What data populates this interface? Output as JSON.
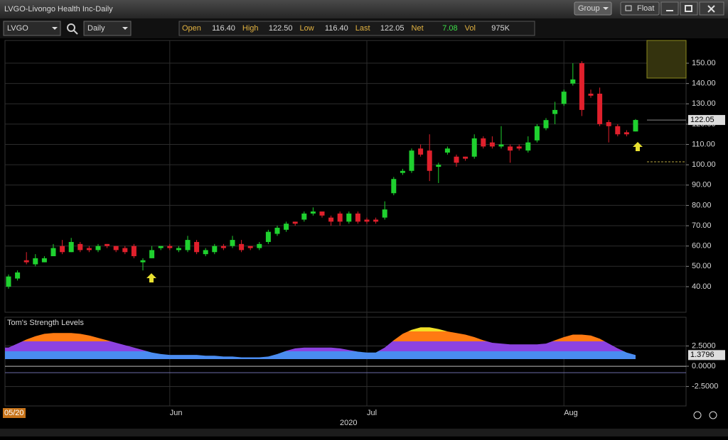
{
  "window": {
    "title": "LVGO-Livongo Health Inc-Daily",
    "buttons": [
      "Group",
      "Float"
    ]
  },
  "toolbar": {
    "symbol": "LVGO",
    "interval": "Daily",
    "quote": [
      {
        "label": "Open",
        "value": "116.40"
      },
      {
        "label": "High",
        "value": "122.50"
      },
      {
        "label": "Low",
        "value": "116.40"
      },
      {
        "label": "Last",
        "value": "122.05"
      },
      {
        "label": "Net",
        "value": "7.08"
      },
      {
        "label": "Vol",
        "value": "975K"
      }
    ]
  },
  "chart_data": [
    {
      "type": "candlestick",
      "categories": [
        null,
        null,
        null,
        null,
        null,
        null,
        null,
        null,
        null,
        null,
        null,
        null,
        null,
        null,
        null,
        null,
        null,
        null,
        null,
        null,
        null,
        null,
        null,
        null,
        null,
        null,
        null,
        null,
        null,
        null,
        null,
        null,
        null,
        null,
        null,
        null,
        null,
        null,
        null,
        null,
        null,
        null,
        null,
        null,
        null,
        null,
        null,
        null,
        null,
        null,
        null,
        null,
        null,
        null,
        null,
        null,
        null,
        null,
        null,
        null,
        null,
        null,
        null,
        null,
        null,
        null,
        null,
        null,
        null,
        null,
        null
      ],
      "open": [
        40,
        44,
        53,
        51,
        52,
        55,
        60,
        57,
        61,
        59,
        58,
        61,
        60,
        59,
        60,
        52,
        54,
        59,
        60,
        58,
        58,
        62,
        56,
        57,
        60,
        60,
        61,
        60,
        59,
        62,
        66,
        68,
        72,
        73,
        76,
        77,
        74,
        76,
        72,
        76,
        73,
        73,
        74,
        86,
        96,
        97,
        108,
        107,
        99,
        106,
        104,
        104,
        104,
        113,
        111,
        109,
        109,
        109,
        107,
        112,
        118,
        125,
        130,
        140,
        150,
        135,
        135,
        121,
        119,
        116,
        116.4
      ],
      "high": [
        46,
        48,
        57,
        56,
        55,
        61,
        63,
        64,
        62,
        60,
        61,
        61,
        60,
        60,
        61,
        54,
        60,
        60,
        61,
        60,
        65,
        63,
        59,
        61,
        61,
        65,
        63,
        60,
        62,
        68,
        70,
        72,
        72,
        77,
        79,
        77,
        75,
        77,
        77,
        77,
        74,
        74,
        82,
        94,
        98,
        108,
        110,
        115,
        101,
        109,
        105,
        104,
        115,
        114,
        114,
        119,
        110,
        110,
        114,
        120,
        123,
        131,
        137,
        150,
        151,
        137,
        138,
        122,
        120,
        117,
        122.5
      ],
      "low": [
        39,
        43,
        51,
        50,
        52,
        55,
        56,
        57,
        57,
        57,
        57,
        59,
        57,
        56,
        54,
        48,
        54,
        58,
        58,
        57,
        57,
        56,
        55,
        56,
        58,
        59,
        57,
        58,
        58,
        61,
        65,
        67,
        70,
        72,
        75,
        74,
        70,
        70,
        71,
        71,
        71,
        71,
        73,
        85,
        95,
        96,
        104,
        92,
        91,
        105,
        99,
        102,
        103,
        108,
        108,
        108,
        101,
        107,
        106,
        111,
        117,
        120,
        129,
        139,
        124,
        133,
        119,
        111,
        114,
        114,
        116.4
      ],
      "close": [
        45,
        47,
        52,
        54,
        54,
        59,
        57,
        62,
        58,
        58,
        60,
        60,
        58,
        57,
        55,
        53,
        58,
        60,
        59,
        59,
        63,
        57,
        58,
        60,
        59,
        63,
        58,
        59,
        61,
        67,
        69,
        71,
        71,
        76,
        77,
        75,
        72,
        72,
        76,
        72,
        72,
        72,
        78,
        93,
        97,
        107,
        105,
        97,
        100,
        108,
        101,
        103,
        113,
        109,
        109,
        110,
        107,
        108,
        111,
        119,
        122,
        127,
        136,
        142,
        127,
        134,
        120,
        119,
        115,
        115,
        122.05
      ],
      "up_color": "#1fd12f",
      "down_color": "#e0202c",
      "ylim": [
        27.4,
        161.2
      ],
      "yticks": [
        {
          "value": 40,
          "label": "40.00"
        },
        {
          "value": 50,
          "label": "50.00"
        },
        {
          "value": 60,
          "label": "60.00"
        },
        {
          "value": 70,
          "label": "70.00"
        },
        {
          "value": 80,
          "label": "80.00"
        },
        {
          "value": 90,
          "label": "90.00"
        },
        {
          "value": 100,
          "label": "100.00"
        },
        {
          "value": 110,
          "label": "110.00"
        },
        {
          "value": 120,
          "label": "120.00"
        },
        {
          "value": 130,
          "label": "130.00"
        },
        {
          "value": 140,
          "label": "140.00"
        },
        {
          "value": 150,
          "label": "150.00"
        }
      ],
      "xticks": [
        {
          "value": 0,
          "label": "05/20"
        },
        {
          "value": 18,
          "label": "Jun"
        },
        {
          "value": 40,
          "label": "Jul"
        },
        {
          "value": 62,
          "label": "Aug"
        }
      ],
      "x_caption": "2020",
      "grid": true
    },
    {
      "type": "area",
      "title": "Tom's Strength Levels",
      "values": [
        2.3,
        2.8,
        3.3,
        3.7,
        4.0,
        4.1,
        4.1,
        4.1,
        4.0,
        3.8,
        3.5,
        3.2,
        2.9,
        2.6,
        2.3,
        2.0,
        1.7,
        1.5,
        1.4,
        1.4,
        1.4,
        1.4,
        1.3,
        1.3,
        1.2,
        1.2,
        1.1,
        1.1,
        1.1,
        1.2,
        1.5,
        1.9,
        2.2,
        2.3,
        2.3,
        2.3,
        2.3,
        2.2,
        2.0,
        1.8,
        1.7,
        1.7,
        2.3,
        3.2,
        4.0,
        4.5,
        4.8,
        4.8,
        4.6,
        4.3,
        4.1,
        3.9,
        3.6,
        3.2,
        2.9,
        2.8,
        2.7,
        2.7,
        2.7,
        2.7,
        2.8,
        3.2,
        3.6,
        3.9,
        3.9,
        3.8,
        3.4,
        2.8,
        2.2,
        1.7,
        1.3796
      ],
      "ylim": [
        -4.9,
        6.05
      ],
      "yticks": [
        {
          "value": 2.5,
          "label": "2.5000"
        },
        {
          "value": 0,
          "label": "0.0000"
        },
        {
          "value": -2.5,
          "label": "-2.5000"
        }
      ]
    }
  ]
}
